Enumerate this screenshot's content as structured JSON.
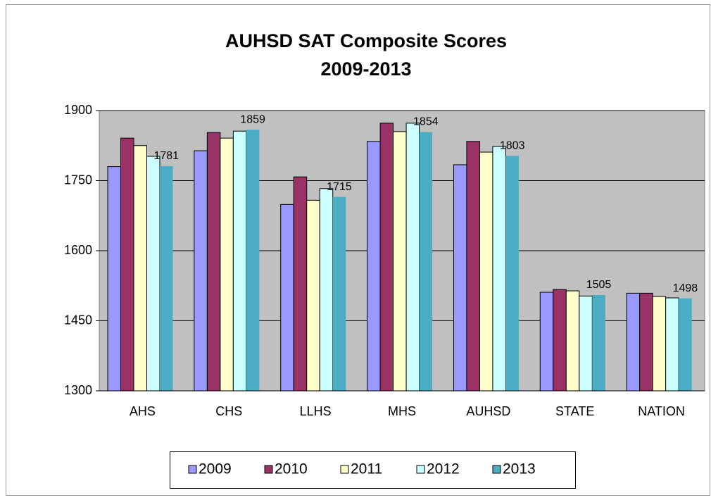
{
  "chart_data": {
    "type": "bar",
    "title": [
      "AUHSD SAT Composite Scores",
      "2009-2013"
    ],
    "categories": [
      "AHS",
      "CHS",
      "LLHS",
      "MHS",
      "AUHSD",
      "STATE",
      "NATION"
    ],
    "series": [
      {
        "name": "2009",
        "color": "#9999ff",
        "values": [
          1780,
          1814,
          1699,
          1834,
          1784,
          1511,
          1509
        ]
      },
      {
        "name": "2010",
        "color": "#993366",
        "values": [
          1841,
          1853,
          1758,
          1873,
          1834,
          1517,
          1509
        ]
      },
      {
        "name": "2011",
        "color": "#ffffcc",
        "values": [
          1825,
          1841,
          1708,
          1855,
          1811,
          1514,
          1502
        ]
      },
      {
        "name": "2012",
        "color": "#ccffff",
        "values": [
          1802,
          1856,
          1733,
          1873,
          1823,
          1503,
          1499
        ]
      },
      {
        "name": "2013",
        "color": "#4bacc6",
        "values": [
          1781,
          1859,
          1715,
          1854,
          1803,
          1505,
          1498
        ],
        "data_labels": true
      }
    ],
    "ylim": [
      1300,
      1900
    ],
    "yticks": [
      1300,
      1450,
      1600,
      1750,
      1900
    ],
    "grid": true,
    "plot_background": "#c0c0c0",
    "legend": "bottom"
  }
}
